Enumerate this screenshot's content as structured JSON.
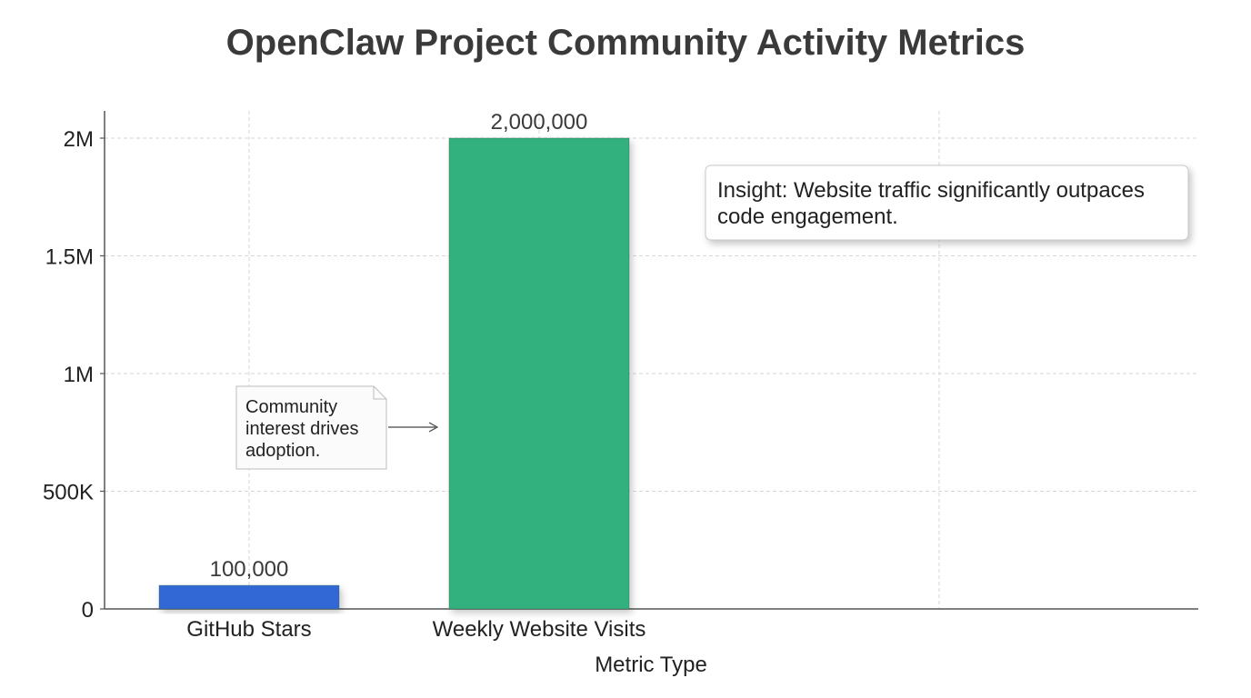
{
  "chart_data": {
    "type": "bar",
    "title": "OpenClaw Project Community Activity Metrics",
    "xlabel": "Metric Type",
    "ylabel": "",
    "categories": [
      "GitHub Stars",
      "Weekly Website Visits"
    ],
    "values": [
      100000,
      2000000
    ],
    "data_labels": [
      "100,000",
      "2,000,000"
    ],
    "colors": [
      "#3367d6",
      "#33b07e"
    ],
    "ylim": [
      0,
      2100000
    ],
    "y_ticks": [
      {
        "value": 0,
        "label": "0"
      },
      {
        "value": 500000,
        "label": "500K"
      },
      {
        "value": 1000000,
        "label": "1M"
      },
      {
        "value": 1500000,
        "label": "1.5M"
      },
      {
        "value": 2000000,
        "label": "2M"
      }
    ],
    "grid": true,
    "annotations": [
      {
        "text_lines": [
          "Community",
          "interest drives",
          "adoption."
        ],
        "points_to": "Weekly Website Visits"
      },
      {
        "text_lines": [
          "Insight: Website traffic significantly outpaces",
          "code engagement."
        ],
        "placement": "top-right"
      }
    ]
  }
}
